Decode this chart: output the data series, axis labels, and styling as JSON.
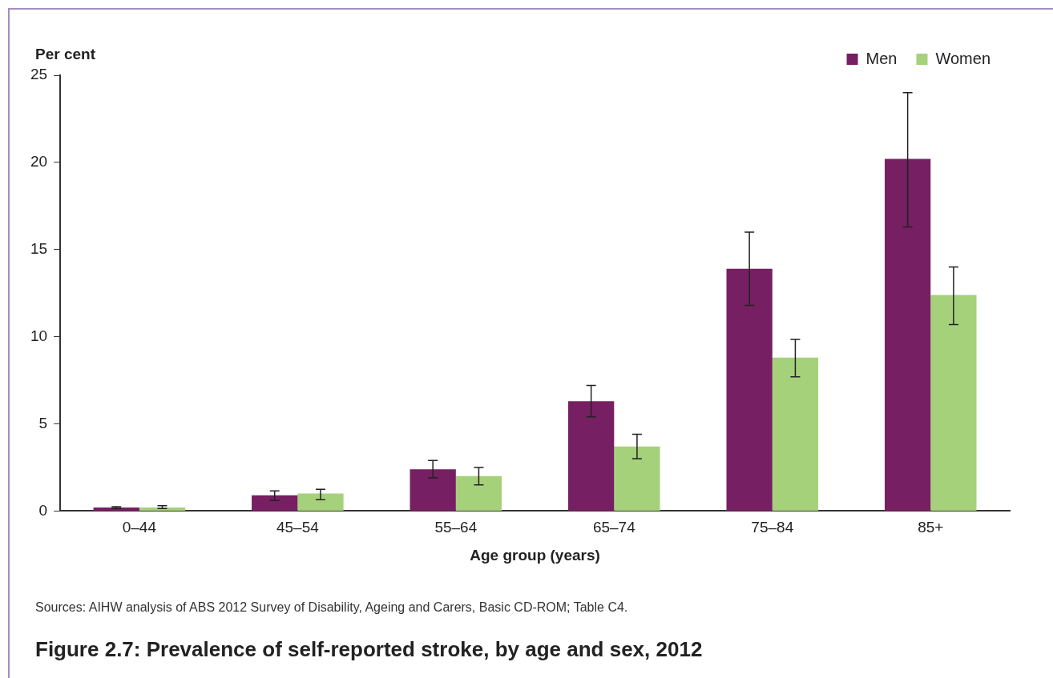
{
  "chart_data": {
    "type": "bar",
    "title": "Figure 2.7: Prevalence of self-reported stroke, by age and sex, 2012",
    "xlabel": "Age group (years)",
    "ylabel": "Per cent",
    "categories": [
      "0–44",
      "45–54",
      "55–64",
      "65–74",
      "75–84",
      "85+"
    ],
    "series": [
      {
        "name": "Men",
        "color": "#761f62",
        "values": [
          0.2,
          0.9,
          2.4,
          6.3,
          13.9,
          20.2
        ],
        "errors": [
          [
            0.15,
            0.25
          ],
          [
            0.6,
            1.15
          ],
          [
            1.9,
            2.9
          ],
          [
            5.4,
            7.2
          ],
          [
            11.8,
            16.0
          ],
          [
            16.3,
            24.0
          ]
        ]
      },
      {
        "name": "Women",
        "color": "#a6d17b",
        "values": [
          0.2,
          1.0,
          2.0,
          3.7,
          8.8,
          12.4
        ],
        "errors": [
          [
            0.15,
            0.3
          ],
          [
            0.65,
            1.25
          ],
          [
            1.5,
            2.5
          ],
          [
            3.0,
            4.4
          ],
          [
            7.7,
            9.85
          ],
          [
            10.7,
            14.0
          ]
        ]
      }
    ],
    "ylim": [
      0,
      25
    ],
    "yticks": [
      0,
      5,
      10,
      15,
      20,
      25
    ],
    "grid": false,
    "legend": "top right",
    "annotations": [
      "Sources: AIHW analysis of ABS 2012 Survey of Disability, Ageing and Carers, Basic CD-ROM; Table C4."
    ]
  }
}
